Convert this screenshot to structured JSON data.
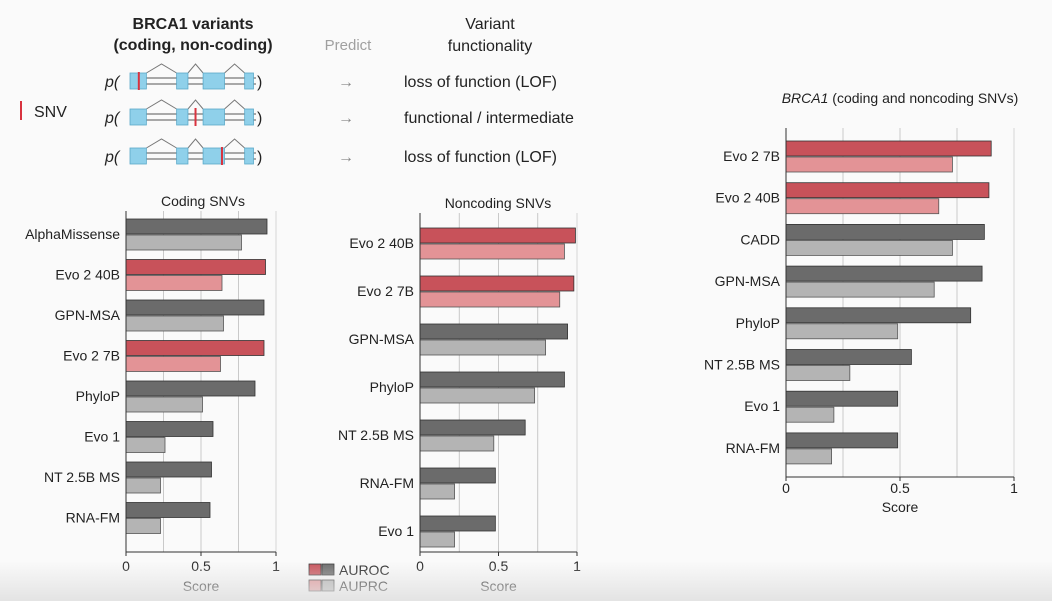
{
  "colors": {
    "auroc_evo": "#c8525a",
    "auprc_evo": "#e39396",
    "auroc_other": "#6b6b6b",
    "auprc_other": "#b4b4b4",
    "exon": "#8fd0ea",
    "snv": "#d8333f",
    "grid": "#bdbdbd",
    "muted": "#9a9a9a"
  },
  "schematic": {
    "title_line1": "BRCA1 variants",
    "title_line2": "(coding, non-coding)",
    "predict_label": "Predict",
    "func_line1": "Variant",
    "func_line2": "functionality",
    "snv_label": "SNV",
    "p_label": "p(",
    "close_paren": ")",
    "arrow": "→",
    "rows": [
      {
        "outcome": "loss of function (LOF)",
        "snv_pos": 0.07
      },
      {
        "outcome": "functional / intermediate",
        "snv_pos": 0.52
      },
      {
        "outcome": "loss of function (LOF)",
        "snv_pos": 0.73
      }
    ]
  },
  "legend": {
    "auroc": "AUROC",
    "auprc": "AUPRC"
  },
  "chart_data": [
    {
      "type": "bar",
      "title": "Coding SNVs",
      "xlabel": "Score",
      "xlim": [
        0,
        1
      ],
      "ticks": [
        0,
        0.5,
        1
      ],
      "tick_labels": [
        "0",
        "0.5",
        "1"
      ],
      "categories": [
        "AlphaMissense",
        "Evo 2 40B",
        "GPN-MSA",
        "Evo 2 7B",
        "PhyloP",
        "Evo 1",
        "NT 2.5B MS",
        "RNA-FM"
      ],
      "highlight": [
        false,
        true,
        false,
        true,
        false,
        false,
        false,
        false
      ],
      "series": [
        {
          "name": "AUROC",
          "values": [
            0.94,
            0.93,
            0.92,
            0.92,
            0.86,
            0.58,
            0.57,
            0.56
          ]
        },
        {
          "name": "AUPRC",
          "values": [
            0.77,
            0.64,
            0.65,
            0.63,
            0.51,
            0.26,
            0.23,
            0.23
          ]
        }
      ]
    },
    {
      "type": "bar",
      "title": "Noncoding SNVs",
      "xlabel": "Score",
      "xlim": [
        0,
        1
      ],
      "ticks": [
        0,
        0.5,
        1
      ],
      "tick_labels": [
        "0",
        "0.5",
        "1"
      ],
      "categories": [
        "Evo 2 40B",
        "Evo 2 7B",
        "GPN-MSA",
        "PhyloP",
        "NT 2.5B MS",
        "RNA-FM",
        "Evo 1"
      ],
      "highlight": [
        true,
        true,
        false,
        false,
        false,
        false,
        false
      ],
      "series": [
        {
          "name": "AUROC",
          "values": [
            0.99,
            0.98,
            0.94,
            0.92,
            0.67,
            0.48,
            0.48
          ]
        },
        {
          "name": "AUPRC",
          "values": [
            0.92,
            0.89,
            0.8,
            0.73,
            0.47,
            0.22,
            0.22
          ]
        }
      ]
    },
    {
      "type": "bar",
      "title_italic": "BRCA1",
      "title_rest": " (coding and noncoding SNVs)",
      "xlabel": "Score",
      "xlim": [
        0,
        1
      ],
      "ticks": [
        0,
        0.5,
        1
      ],
      "tick_labels": [
        "0",
        "0.5",
        "1"
      ],
      "categories": [
        "Evo 2 7B",
        "Evo 2 40B",
        "CADD",
        "GPN-MSA",
        "PhyloP",
        "NT 2.5B MS",
        "Evo 1",
        "RNA-FM"
      ],
      "highlight": [
        true,
        true,
        false,
        false,
        false,
        false,
        false,
        false
      ],
      "series": [
        {
          "name": "AUROC",
          "values": [
            0.9,
            0.89,
            0.87,
            0.86,
            0.81,
            0.55,
            0.49,
            0.49
          ]
        },
        {
          "name": "AUPRC",
          "values": [
            0.73,
            0.67,
            0.73,
            0.65,
            0.49,
            0.28,
            0.21,
            0.2
          ]
        }
      ]
    }
  ]
}
